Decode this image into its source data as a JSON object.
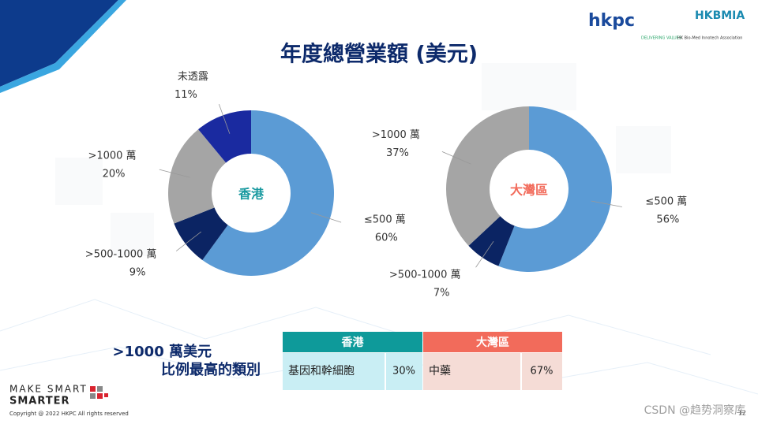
{
  "title": "年度總營業額 (美元)",
  "logos": {
    "hkpc": "hkpc",
    "hkpc_tag": "DELIVERING VALUES",
    "hkbmia": "HKBMIA",
    "hkbmia_name": "HK Bio-Med Innotech Association"
  },
  "chart_data": [
    {
      "type": "donut",
      "center_label": "香港",
      "categories": [
        "≤500 萬",
        ">500-1000 萬",
        ">1000 萬",
        "未透露"
      ],
      "values": [
        60,
        9,
        20,
        11
      ],
      "value_labels": [
        "60%",
        "9%",
        "20%",
        "11%"
      ],
      "colors": [
        "#5b9bd5",
        "#0b2463",
        "#a5a5a5",
        "#1a2aa0"
      ]
    },
    {
      "type": "donut",
      "center_label": "大灣區",
      "categories": [
        "≤500 萬",
        ">500-1000 萬",
        ">1000 萬"
      ],
      "values": [
        56,
        7,
        37
      ],
      "value_labels": [
        "56%",
        "7%",
        "37%"
      ],
      "colors": [
        "#5b9bd5",
        "#0b2463",
        "#a5a5a5"
      ]
    }
  ],
  "caption": [
    ">1000 萬美元",
    "比例最高的類別"
  ],
  "table": {
    "columns": [
      {
        "header": "香港",
        "category": "基因和幹細胞",
        "value": "30%"
      },
      {
        "header": "大灣區",
        "category": "中藥",
        "value": "67%"
      }
    ]
  },
  "footer": {
    "brand1": "MAKE SMART",
    "brand2": "SMARTER",
    "copyright": "Copyright @ 2022 HKPC All rights reserved",
    "page": "12",
    "watermark": "CSDN @趋势洞察库"
  }
}
